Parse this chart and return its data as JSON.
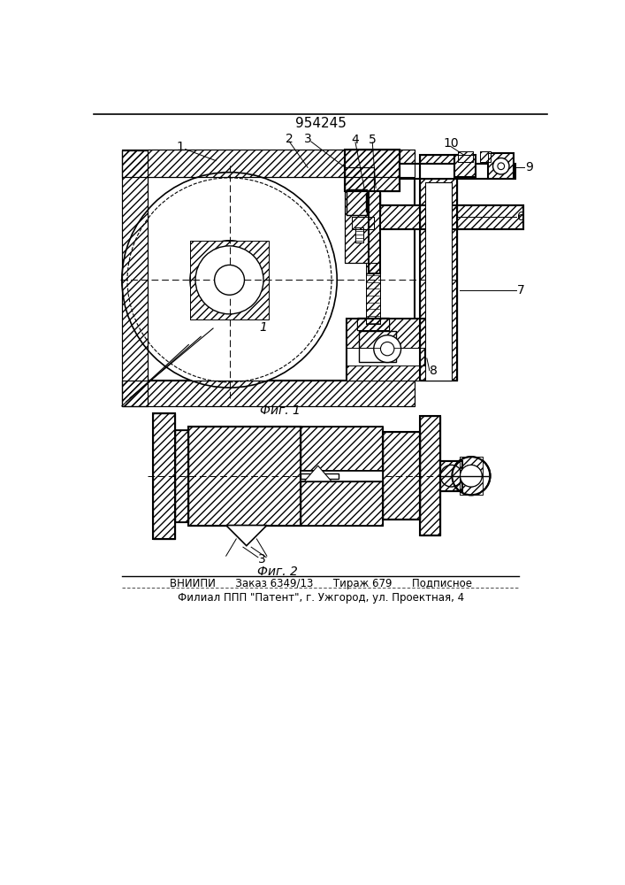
{
  "title": "954245",
  "fig1_label": "Фиг. 1",
  "fig2_label": "Фиг. 2",
  "bottom_line1": "ВНИИПИ      Заказ 6349/13      Тираж 679      Подписное",
  "bottom_line2": "Филиал ППП \"Патент\", г. Ужгород, ул. Проектная, 4",
  "bg_color": "#ffffff",
  "line_color": "#000000"
}
